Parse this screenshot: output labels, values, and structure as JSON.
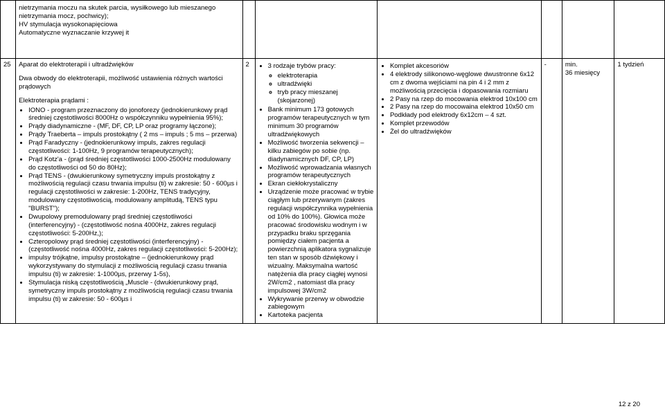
{
  "partial_row": {
    "list": [
      "nietrzymania moczu na skutek parcia, wysiłkowego lub mieszanego nietrzymania mocz, pochwicy);",
      "HV stymulacja wysokonapięciowa",
      "Automatyczne wyznaczanie krzywej it"
    ]
  },
  "row25": {
    "num": "25",
    "qty": "2",
    "dash": "-",
    "warranty_line1": "min.",
    "warranty_line2": "36 miesięcy",
    "delivery": "1 tydzień",
    "desc": {
      "title": "Aparat do elektroterapii i ultradźwięków",
      "para1": "Dwa obwody do elektroterapii, możliwość ustawienia różnych wartości prądowych",
      "para2": "Elektroterapia prądami :",
      "items": [
        "IONO - program przeznaczony do jonoforezy (jednokierunkowy prąd średniej częstotliwości 8000Hz o współczynniku wypełnienia 95%);",
        "Prądy diadynamiczne - (MF, DF, CP, LP oraz programy łączone);",
        "Prądy Traeberta – impuls prostokątny ( 2 ms – impuls  ;  5 ms – przerwa)",
        "Prąd Faradyczny - (jednokierunkowy impuls, zakres regulacji częstotliwości: 1-100Hz,  9 programów terapeutycznych);",
        "Prąd Kotz'a - (prąd średniej częstotliwości 1000-2500Hz modulowany do częstotliwości od 50 do 80Hz);",
        "Prąd TENS - (dwukierunkowy symetryczny impuls prostokątny z możliwością regulacji czasu trwania impulsu (ti) w zakresie: 50 - 600µs i regulacji częstotliwości w zakresie: 1-200Hz, TENS tradycyjny, modulowany częstotliwością, modulowany amplitudą, TENS typu \"BURST\");",
        "Dwupolowy premodulowany prąd średniej częstotliwości (interferencyjny) - (częstotliwość nośna 4000Hz, zakres regulacji częstotliwości: 5-200Hz,);",
        "Czteropolowy prąd średniej częstotliwości (interferencyjny) - (częstotliwość nośna 4000Hz, zakres regulacji częstotliwości: 5-200Hz);",
        "impulsy trójkątne, impulsy prostokątne – (jednokierunkowy prąd wykorzystywany do stymulacji z możliwością  regulacji czasu trwania impulsu (ti) w zakresie: 1-1000µs, przerwy 1-5s),",
        "Stymulacja niską częstotliwością „Muscle - (dwukierunkowy prąd, symetryczny impuls prostokątny z możliwością  regulacji czasu trwania impulsu (ti) w zakresie: 50 - 600µs i"
      ]
    },
    "spec1": {
      "items": [
        {
          "text": "3 rodzaje trybów pracy:",
          "sub": [
            "elektroterapia",
            "ultradźwięki",
            "tryb pracy mieszanej (skojarzonej)"
          ]
        },
        {
          "text": "Bank minimum 173 gotowych programów terapeutycznych w tym minimum 30 programów ultradźwiękowych"
        },
        {
          "text": "Możliwość tworzenia sekwencji – kilku zabiegów po sobie (np. diadynamicznych DF, CP, LP)"
        },
        {
          "text": "Możliwość wprowadzania własnych programów terapeutycznych"
        },
        {
          "text": "Ekran ciekłokrystaliczny"
        },
        {
          "text": "Urządzenie może pracować w trybie ciągłym lub przerywanym (zakres regulacji współczynnika wypełnienia od 10% do 100%). Głowica może pracować środowisku wodnym i w przypadku braku sprzęgania pomiędzy ciałem pacjenta a powierzchnią aplikatora sygnalizuje ten stan w sposób dźwiękowy i wizualny. Maksymalna wartość natężenia dla pracy ciągłej wynosi 2W/cm2 , natomiast dla pracy impulsowej 3W/cm2"
        },
        {
          "text": "Wykrywanie przerwy w obwodzie zabiegowym"
        },
        {
          "text": "Kartoteka pacjenta"
        }
      ]
    },
    "spec2": {
      "items": [
        "Komplet akcesoriów",
        "4 elektrody silikonowo-węglowe dwustronne 6x12 cm z dwoma wejściami na pin 4 i 2 mm z możliwością przecięcia i dopasowania rozmiaru",
        "2 Pasy na rzep do mocowania elektrod 10x100 cm",
        "2 Pasy na rzep do mocowaina elektrod 10x50 cm",
        "Podkłady pod elektrody 6x12cm – 4 szt.",
        "Komplet przewodów",
        "Żel do ultradźwięków"
      ]
    }
  },
  "footer": "12 z 20"
}
